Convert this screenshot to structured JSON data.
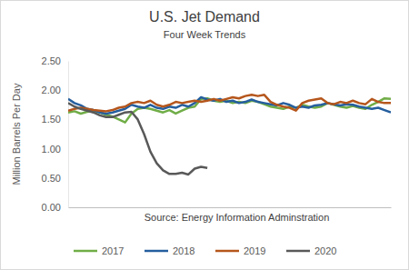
{
  "chart_data": {
    "type": "line",
    "title": "U.S. Jet Demand",
    "subtitle": "Four Week Trends",
    "ylabel": "Million Barrels Per Day",
    "annotations": [
      "Source: Energy Information Adminstration"
    ],
    "categories": [
      null,
      null,
      null,
      null,
      null,
      null,
      null,
      null,
      null,
      null,
      null,
      null,
      null,
      null,
      null,
      null,
      null,
      null,
      null,
      null,
      null,
      null,
      null,
      null,
      null,
      null,
      null,
      null,
      null,
      null,
      null,
      null,
      null,
      null,
      null,
      null,
      null,
      null,
      null,
      null,
      null,
      null,
      null,
      null,
      null,
      null,
      null,
      null,
      null,
      null,
      null,
      null
    ],
    "ylim": [
      0,
      2.5
    ],
    "yticks": [
      {
        "value": 0,
        "label": "0.00"
      },
      {
        "value": 0.5,
        "label": "0.50"
      },
      {
        "value": 1,
        "label": "1.00"
      },
      {
        "value": 1.5,
        "label": "1.50"
      },
      {
        "value": 2,
        "label": "2.00"
      },
      {
        "value": 2.5,
        "label": "2.50"
      }
    ],
    "grid": false,
    "tick_labels": "y",
    "legend": "bottom",
    "series": [
      {
        "name": "2017",
        "color": "#70ad47",
        "values": [
          1.62,
          1.64,
          1.6,
          1.63,
          1.65,
          1.62,
          1.58,
          1.55,
          1.5,
          1.45,
          1.6,
          1.68,
          1.7,
          1.68,
          1.65,
          1.62,
          1.66,
          1.6,
          1.65,
          1.7,
          1.72,
          1.85,
          1.86,
          1.82,
          1.8,
          1.82,
          1.78,
          1.8,
          1.78,
          1.82,
          1.8,
          1.76,
          1.72,
          1.7,
          1.68,
          1.72,
          1.7,
          1.75,
          1.72,
          1.7,
          1.72,
          1.78,
          1.75,
          1.72,
          1.7,
          1.73,
          1.7,
          1.68,
          1.75,
          1.8,
          1.86,
          1.85
        ]
      },
      {
        "name": "2018",
        "color": "#255e9e",
        "values": [
          1.85,
          1.78,
          1.74,
          1.68,
          1.66,
          1.62,
          1.6,
          1.62,
          1.65,
          1.68,
          1.75,
          1.72,
          1.7,
          1.75,
          1.7,
          1.68,
          1.72,
          1.7,
          1.75,
          1.72,
          1.78,
          1.88,
          1.84,
          1.82,
          1.85,
          1.8,
          1.82,
          1.78,
          1.8,
          1.84,
          1.8,
          1.78,
          1.76,
          1.74,
          1.78,
          1.75,
          1.7,
          1.72,
          1.7,
          1.74,
          1.75,
          1.78,
          1.76,
          1.74,
          1.76,
          1.75,
          1.72,
          1.7,
          1.68,
          1.7,
          1.66,
          1.62
        ]
      },
      {
        "name": "2019",
        "color": "#b5561c",
        "values": [
          1.65,
          1.68,
          1.7,
          1.68,
          1.66,
          1.65,
          1.64,
          1.66,
          1.7,
          1.72,
          1.78,
          1.8,
          1.78,
          1.82,
          1.75,
          1.72,
          1.75,
          1.8,
          1.78,
          1.8,
          1.82,
          1.8,
          1.82,
          1.85,
          1.82,
          1.85,
          1.88,
          1.86,
          1.9,
          1.92,
          1.9,
          1.92,
          1.8,
          1.75,
          1.72,
          1.7,
          1.65,
          1.78,
          1.82,
          1.84,
          1.86,
          1.78,
          1.76,
          1.8,
          1.78,
          1.82,
          1.78,
          1.76,
          1.85,
          1.8,
          1.78,
          1.78
        ]
      },
      {
        "name": "2020",
        "color": "#595959",
        "values": [
          1.78,
          1.72,
          1.68,
          1.65,
          1.62,
          1.57,
          1.54,
          1.54,
          1.58,
          1.62,
          1.63,
          1.5,
          1.25,
          0.95,
          0.75,
          0.63,
          0.57,
          0.57,
          0.59,
          0.56,
          0.66,
          0.69,
          0.67,
          null,
          null,
          null,
          null,
          null,
          null,
          null,
          null,
          null,
          null,
          null,
          null,
          null,
          null,
          null,
          null,
          null,
          null,
          null,
          null,
          null,
          null,
          null,
          null,
          null,
          null,
          null,
          null,
          null
        ]
      }
    ]
  }
}
